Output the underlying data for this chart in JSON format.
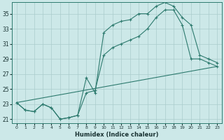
{
  "xlabel": "Humidex (Indice chaleur)",
  "bg_color": "#cce8e8",
  "grid_color": "#aacccc",
  "line_color": "#2d7a6e",
  "xlim": [
    -0.5,
    23.5
  ],
  "ylim": [
    20.5,
    36.5
  ],
  "xticks": [
    0,
    1,
    2,
    3,
    4,
    5,
    6,
    7,
    8,
    9,
    10,
    11,
    12,
    13,
    14,
    15,
    16,
    17,
    18,
    19,
    20,
    21,
    22,
    23
  ],
  "yticks": [
    21,
    23,
    25,
    27,
    29,
    31,
    33,
    35
  ],
  "line1_x": [
    0,
    1,
    2,
    3,
    4,
    5,
    6,
    7,
    8,
    9,
    10,
    11,
    12,
    13,
    14,
    15,
    16,
    17,
    18,
    19,
    20,
    21,
    22,
    23
  ],
  "line1_y": [
    23.2,
    22.2,
    22.0,
    23.0,
    22.5,
    21.0,
    21.2,
    21.5,
    26.5,
    24.5,
    32.5,
    33.5,
    34.0,
    34.2,
    35.0,
    35.0,
    36.0,
    36.5,
    36.0,
    34.5,
    33.5,
    29.5,
    29.0,
    28.5
  ],
  "line2_x": [
    0,
    1,
    2,
    3,
    4,
    5,
    6,
    7,
    8,
    9,
    10,
    11,
    12,
    13,
    14,
    15,
    16,
    17,
    18,
    19,
    20,
    21,
    22,
    23
  ],
  "line2_y": [
    23.2,
    22.2,
    22.0,
    23.0,
    22.5,
    21.0,
    21.2,
    21.5,
    24.5,
    24.8,
    29.5,
    30.5,
    31.0,
    31.5,
    32.0,
    33.0,
    34.5,
    35.5,
    35.5,
    33.5,
    29.0,
    29.0,
    28.5,
    28.0
  ],
  "line3_x": [
    0,
    23
  ],
  "line3_y": [
    23.2,
    28.0
  ]
}
